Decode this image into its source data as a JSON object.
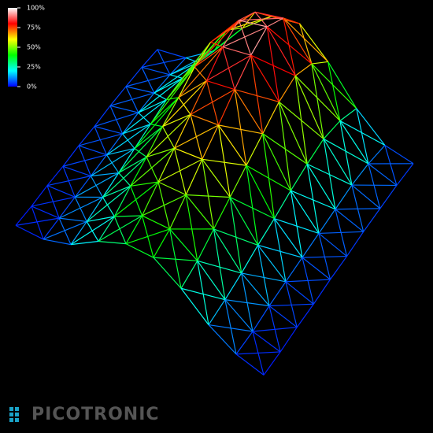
{
  "chart_data": {
    "type": "surface",
    "zlim": [
      0,
      100
    ],
    "zticks": [
      {
        "value": 0,
        "label": "0%"
      },
      {
        "value": 25,
        "label": "25%"
      },
      {
        "value": 50,
        "label": "50%"
      },
      {
        "value": 75,
        "label": "75%"
      },
      {
        "value": 100,
        "label": "100%"
      }
    ],
    "colormap": [
      "#0000ff",
      "#00ffff",
      "#00ff00",
      "#ffff00",
      "#ff0000",
      "#ffffff"
    ],
    "z": [
      [
        4,
        7,
        21,
        46,
        63,
        67,
        49,
        25,
        8,
        4
      ],
      [
        5,
        9,
        27,
        59,
        81,
        86,
        63,
        32,
        11,
        5
      ],
      [
        5,
        10,
        30,
        65,
        90,
        95,
        70,
        35,
        12,
        5
      ],
      [
        5,
        10,
        29,
        62,
        86,
        90,
        67,
        33,
        11,
        5
      ],
      [
        4,
        9,
        26,
        55,
        77,
        81,
        60,
        30,
        10,
        4
      ],
      [
        4,
        8,
        23,
        49,
        68,
        71,
        53,
        26,
        9,
        4
      ],
      [
        3,
        7,
        20,
        42,
        59,
        62,
        46,
        23,
        8,
        3
      ],
      [
        3,
        6,
        17,
        36,
        50,
        52,
        39,
        19,
        7,
        3
      ],
      [
        2,
        5,
        14,
        29,
        41,
        43,
        32,
        16,
        5,
        2
      ],
      [
        2,
        4,
        12,
        26,
        36,
        38,
        28,
        14,
        5,
        2
      ]
    ]
  },
  "logo": "PICOTRONIC"
}
